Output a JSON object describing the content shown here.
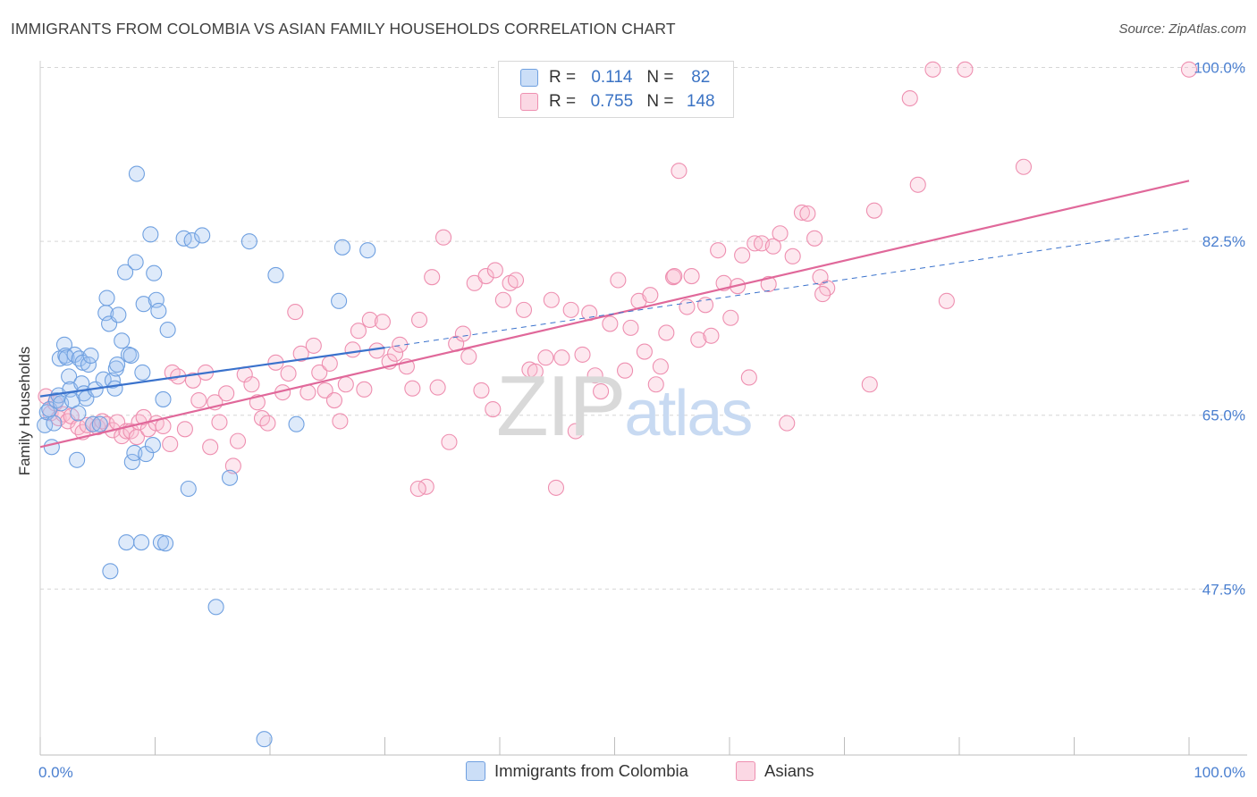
{
  "title": "IMMIGRANTS FROM COLOMBIA VS ASIAN FAMILY HOUSEHOLDS CORRELATION CHART",
  "source": "Source: ZipAtlas.com",
  "watermark": {
    "zip": "ZIP",
    "atlas": "atlas"
  },
  "colors": {
    "blue": "#6fa0e0",
    "blue_fill": "rgba(160,195,240,0.35)",
    "pink": "#ee8fb0",
    "pink_fill": "rgba(248,190,210,0.35)",
    "blue_line": "#3a72cc",
    "pink_line": "#e0689a",
    "tick_text": "#4a7fd0"
  },
  "legend": {
    "rows": [
      {
        "r_label": "R =",
        "r_value": "0.114",
        "n_label": "N =",
        "n_value": "82"
      },
      {
        "r_label": "R =",
        "r_value": "0.755",
        "n_label": "N =",
        "n_value": "148"
      }
    ]
  },
  "chart_data": {
    "type": "scatter",
    "title": "IMMIGRANTS FROM COLOMBIA VS ASIAN FAMILY HOUSEHOLDS CORRELATION CHART",
    "xlabel": "",
    "ylabel": "Family Households",
    "xlim": [
      0,
      100
    ],
    "ylim": [
      30.8,
      100.5
    ],
    "x_tick_labels": [
      "0.0%",
      "100.0%"
    ],
    "y_ticks": [
      47.5,
      65.0,
      82.5,
      100.0
    ],
    "y_tick_labels": [
      "47.5%",
      "65.0%",
      "82.5%",
      "100.0%"
    ],
    "legend_labels": [
      "Immigrants from Colombia",
      "Asians"
    ],
    "series": [
      {
        "name": "Immigrants from Colombia",
        "color": "blue",
        "r": 0.114,
        "n": 82,
        "trend_solid": [
          [
            0,
            66.9
          ],
          [
            30,
            71.8
          ]
        ],
        "trend_dashed": [
          [
            30,
            71.8
          ],
          [
            100,
            83.8
          ]
        ],
        "points": [
          [
            0.4,
            64.0
          ],
          [
            0.6,
            65.3
          ],
          [
            0.8,
            65.6
          ],
          [
            1.0,
            61.8
          ],
          [
            1.2,
            64.2
          ],
          [
            1.4,
            66.5
          ],
          [
            1.6,
            67.0
          ],
          [
            1.7,
            70.7
          ],
          [
            1.8,
            66.2
          ],
          [
            2.1,
            72.1
          ],
          [
            2.2,
            71.0
          ],
          [
            2.3,
            70.8
          ],
          [
            2.5,
            68.9
          ],
          [
            2.6,
            67.6
          ],
          [
            2.8,
            66.5
          ],
          [
            3.0,
            71.1
          ],
          [
            3.2,
            60.5
          ],
          [
            3.3,
            65.2
          ],
          [
            3.4,
            70.7
          ],
          [
            3.6,
            68.2
          ],
          [
            3.7,
            70.3
          ],
          [
            3.8,
            67.2
          ],
          [
            4.0,
            66.7
          ],
          [
            4.2,
            70.1
          ],
          [
            4.4,
            71.0
          ],
          [
            4.6,
            64.1
          ],
          [
            4.8,
            67.6
          ],
          [
            5.2,
            64.1
          ],
          [
            5.5,
            68.6
          ],
          [
            5.7,
            75.3
          ],
          [
            5.8,
            76.8
          ],
          [
            6.0,
            74.2
          ],
          [
            6.1,
            49.3
          ],
          [
            6.3,
            68.5
          ],
          [
            6.5,
            67.7
          ],
          [
            6.6,
            69.7
          ],
          [
            6.7,
            70.1
          ],
          [
            6.8,
            75.1
          ],
          [
            7.1,
            72.5
          ],
          [
            7.4,
            79.4
          ],
          [
            7.5,
            52.2
          ],
          [
            7.7,
            71.1
          ],
          [
            7.9,
            71.0
          ],
          [
            8.0,
            60.3
          ],
          [
            8.2,
            61.2
          ],
          [
            8.3,
            80.4
          ],
          [
            8.4,
            89.3
          ],
          [
            8.8,
            52.2
          ],
          [
            8.9,
            69.3
          ],
          [
            9.0,
            76.2
          ],
          [
            9.2,
            61.1
          ],
          [
            9.6,
            83.2
          ],
          [
            9.8,
            62.0
          ],
          [
            9.9,
            79.3
          ],
          [
            10.1,
            76.6
          ],
          [
            10.3,
            75.5
          ],
          [
            10.5,
            52.2
          ],
          [
            10.7,
            66.6
          ],
          [
            10.9,
            52.1
          ],
          [
            11.1,
            73.6
          ],
          [
            12.5,
            82.8
          ],
          [
            12.9,
            57.6
          ],
          [
            13.2,
            82.6
          ],
          [
            14.1,
            83.1
          ],
          [
            15.3,
            45.7
          ],
          [
            16.5,
            58.7
          ],
          [
            18.2,
            82.5
          ],
          [
            19.5,
            32.4
          ],
          [
            20.5,
            79.1
          ],
          [
            22.3,
            64.1
          ],
          [
            26.0,
            76.5
          ],
          [
            26.3,
            81.9
          ],
          [
            28.5,
            81.6
          ]
        ]
      },
      {
        "name": "Asians",
        "color": "pink",
        "r": 0.755,
        "n": 148,
        "trend": [
          [
            0,
            61.8
          ],
          [
            100,
            88.6
          ]
        ],
        "points": [
          [
            0.5,
            66.9
          ],
          [
            0.9,
            65.2
          ],
          [
            1.3,
            66.2
          ],
          [
            1.6,
            64.7
          ],
          [
            2.0,
            65.1
          ],
          [
            2.4,
            64.4
          ],
          [
            2.7,
            64.9
          ],
          [
            3.3,
            63.8
          ],
          [
            3.7,
            63.3
          ],
          [
            4.1,
            64.0
          ],
          [
            4.6,
            64.1
          ],
          [
            5.0,
            63.8
          ],
          [
            5.4,
            64.4
          ],
          [
            5.8,
            64.1
          ],
          [
            6.3,
            63.5
          ],
          [
            6.7,
            64.3
          ],
          [
            7.1,
            62.9
          ],
          [
            7.5,
            63.4
          ],
          [
            7.9,
            63.4
          ],
          [
            8.4,
            62.8
          ],
          [
            8.6,
            64.3
          ],
          [
            9.0,
            64.8
          ],
          [
            9.4,
            63.6
          ],
          [
            10.1,
            64.2
          ],
          [
            10.7,
            63.9
          ],
          [
            11.3,
            62.1
          ],
          [
            11.5,
            69.3
          ],
          [
            12.0,
            68.9
          ],
          [
            12.6,
            63.6
          ],
          [
            13.3,
            68.5
          ],
          [
            13.8,
            66.5
          ],
          [
            14.4,
            69.3
          ],
          [
            14.8,
            61.8
          ],
          [
            15.2,
            66.3
          ],
          [
            15.6,
            64.3
          ],
          [
            16.2,
            67.2
          ],
          [
            16.8,
            59.9
          ],
          [
            17.2,
            62.4
          ],
          [
            17.8,
            69.1
          ],
          [
            18.4,
            68.1
          ],
          [
            18.9,
            66.3
          ],
          [
            19.3,
            64.7
          ],
          [
            19.8,
            64.2
          ],
          [
            20.5,
            70.3
          ],
          [
            21.1,
            67.3
          ],
          [
            21.6,
            69.2
          ],
          [
            22.2,
            75.4
          ],
          [
            22.7,
            71.2
          ],
          [
            23.3,
            67.3
          ],
          [
            23.8,
            72.0
          ],
          [
            24.3,
            69.3
          ],
          [
            24.8,
            67.5
          ],
          [
            25.2,
            70.2
          ],
          [
            25.6,
            66.5
          ],
          [
            26.1,
            64.4
          ],
          [
            26.6,
            68.1
          ],
          [
            27.2,
            71.6
          ],
          [
            27.7,
            73.5
          ],
          [
            28.2,
            67.6
          ],
          [
            28.7,
            74.6
          ],
          [
            29.3,
            71.5
          ],
          [
            29.8,
            74.4
          ],
          [
            30.4,
            70.4
          ],
          [
            30.9,
            71.2
          ],
          [
            31.3,
            72.1
          ],
          [
            31.9,
            69.9
          ],
          [
            32.4,
            67.7
          ],
          [
            33.0,
            74.6
          ],
          [
            33.6,
            57.8
          ],
          [
            34.1,
            78.9
          ],
          [
            34.6,
            67.8
          ],
          [
            35.1,
            82.9
          ],
          [
            35.6,
            62.3
          ],
          [
            36.2,
            72.2
          ],
          [
            36.8,
            73.2
          ],
          [
            37.3,
            70.9
          ],
          [
            37.8,
            78.3
          ],
          [
            38.4,
            67.5
          ],
          [
            38.8,
            79.0
          ],
          [
            39.4,
            65.6
          ],
          [
            40.3,
            76.6
          ],
          [
            40.9,
            78.3
          ],
          [
            41.4,
            78.6
          ],
          [
            42.1,
            75.6
          ],
          [
            42.6,
            69.6
          ],
          [
            43.1,
            69.4
          ],
          [
            44.0,
            70.8
          ],
          [
            44.5,
            76.6
          ],
          [
            44.9,
            57.7
          ],
          [
            45.4,
            70.8
          ],
          [
            46.2,
            75.6
          ],
          [
            46.6,
            63.4
          ],
          [
            47.2,
            71.1
          ],
          [
            47.8,
            75.3
          ],
          [
            48.3,
            69.0
          ],
          [
            48.8,
            67.4
          ],
          [
            49.6,
            74.2
          ],
          [
            50.3,
            78.6
          ],
          [
            50.9,
            69.5
          ],
          [
            51.4,
            73.8
          ],
          [
            52.1,
            76.5
          ],
          [
            52.6,
            71.4
          ],
          [
            53.1,
            77.1
          ],
          [
            53.6,
            68.1
          ],
          [
            54.0,
            69.9
          ],
          [
            54.5,
            73.3
          ],
          [
            55.1,
            78.9
          ],
          [
            55.6,
            89.6
          ],
          [
            56.3,
            75.9
          ],
          [
            56.7,
            79.0
          ],
          [
            57.3,
            72.6
          ],
          [
            57.9,
            76.1
          ],
          [
            58.4,
            73.0
          ],
          [
            59.0,
            81.6
          ],
          [
            59.5,
            78.3
          ],
          [
            60.1,
            74.8
          ],
          [
            60.7,
            78.0
          ],
          [
            61.1,
            81.1
          ],
          [
            61.7,
            68.8
          ],
          [
            62.2,
            82.3
          ],
          [
            62.8,
            82.3
          ],
          [
            63.4,
            78.2
          ],
          [
            63.8,
            82.0
          ],
          [
            64.4,
            83.3
          ],
          [
            65.0,
            64.2
          ],
          [
            65.5,
            81.0
          ],
          [
            66.3,
            85.4
          ],
          [
            66.8,
            85.3
          ],
          [
            67.4,
            82.8
          ],
          [
            67.9,
            78.9
          ],
          [
            68.5,
            77.8
          ],
          [
            68.1,
            77.2
          ],
          [
            72.2,
            68.1
          ],
          [
            72.6,
            85.6
          ],
          [
            75.7,
            96.9
          ],
          [
            76.4,
            88.2
          ],
          [
            77.7,
            99.8
          ],
          [
            78.9,
            76.5
          ],
          [
            80.5,
            99.8
          ],
          [
            85.6,
            90.0
          ],
          [
            100.0,
            99.8
          ],
          [
            55.2,
            79.0
          ],
          [
            39.6,
            79.6
          ],
          [
            32.9,
            57.6
          ]
        ]
      }
    ]
  }
}
